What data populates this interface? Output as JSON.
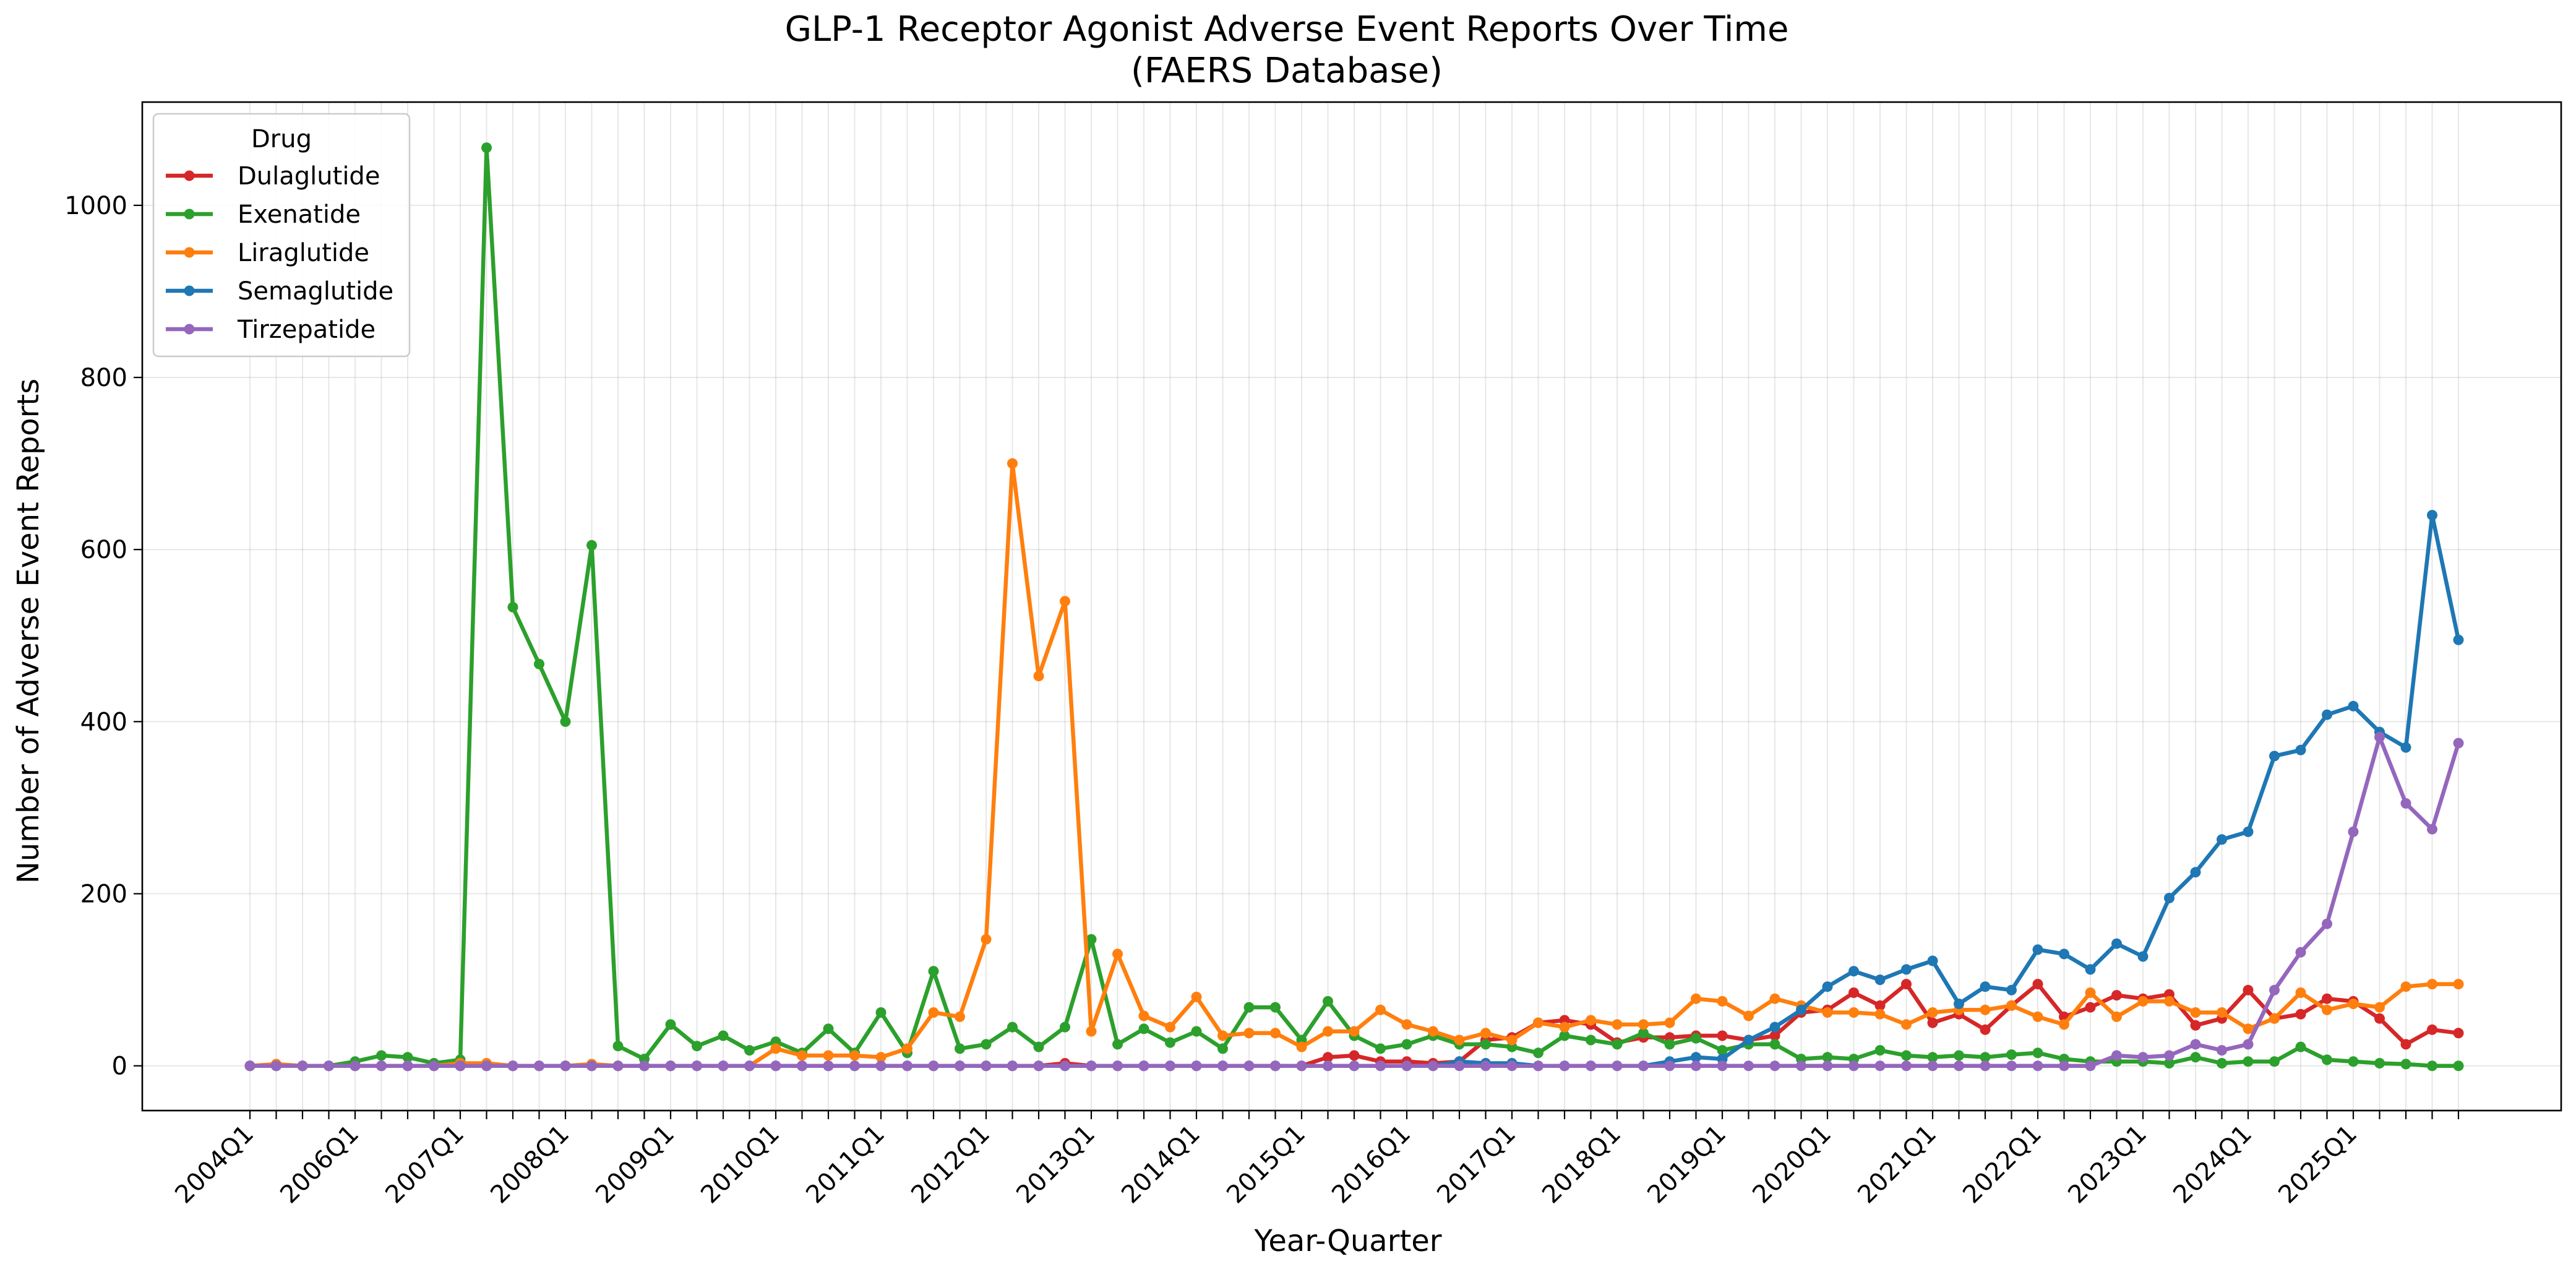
{
  "chart_data": {
    "type": "line",
    "title_line1": "GLP-1 Receptor Agonist Adverse Event Reports Over Time",
    "title_line2": "(FAERS Database)",
    "xlabel": "Year-Quarter",
    "ylabel": "Number of Adverse Event Reports",
    "ylim": [
      -52,
      1120
    ],
    "yticks": [
      0,
      200,
      400,
      600,
      800,
      1000
    ],
    "x_tick_labels": [
      {
        "i": 0,
        "label": "2004Q1"
      },
      {
        "i": 4,
        "label": "2006Q1"
      },
      {
        "i": 8,
        "label": "2007Q1"
      },
      {
        "i": 12,
        "label": "2008Q1"
      },
      {
        "i": 16,
        "label": "2009Q1"
      },
      {
        "i": 20,
        "label": "2010Q1"
      },
      {
        "i": 24,
        "label": "2011Q1"
      },
      {
        "i": 28,
        "label": "2012Q1"
      },
      {
        "i": 32,
        "label": "2013Q1"
      },
      {
        "i": 36,
        "label": "2014Q1"
      },
      {
        "i": 40,
        "label": "2015Q1"
      },
      {
        "i": 44,
        "label": "2016Q1"
      },
      {
        "i": 48,
        "label": "2017Q1"
      },
      {
        "i": 52,
        "label": "2018Q1"
      },
      {
        "i": 56,
        "label": "2019Q1"
      },
      {
        "i": 60,
        "label": "2020Q1"
      },
      {
        "i": 64,
        "label": "2021Q1"
      },
      {
        "i": 68,
        "label": "2022Q1"
      },
      {
        "i": 72,
        "label": "2023Q1"
      },
      {
        "i": 76,
        "label": "2024Q1"
      },
      {
        "i": 80,
        "label": "2025Q1"
      }
    ],
    "n_points": 85,
    "grid": true,
    "legend_title": "Drug",
    "legend_position": "top-left",
    "series": [
      {
        "name": "Dulaglutide",
        "color": "#d62728",
        "values": [
          0,
          0,
          0,
          0,
          0,
          0,
          0,
          0,
          0,
          0,
          0,
          0,
          0,
          0,
          0,
          0,
          0,
          0,
          0,
          0,
          0,
          0,
          0,
          0,
          0,
          0,
          0,
          0,
          0,
          0,
          0,
          3,
          0,
          0,
          0,
          0,
          0,
          0,
          0,
          0,
          0,
          10,
          12,
          5,
          5,
          3,
          5,
          30,
          33,
          50,
          53,
          48,
          27,
          33,
          33,
          35,
          35,
          30,
          35,
          62,
          65,
          85,
          70,
          95,
          50,
          60,
          42,
          70,
          95,
          57,
          68,
          82,
          78,
          83,
          47,
          55,
          88,
          55,
          60,
          78,
          75,
          55,
          25,
          42,
          38
        ]
      },
      {
        "name": "Exenatide",
        "color": "#2ca02c",
        "values": [
          0,
          0,
          0,
          0,
          5,
          12,
          10,
          3,
          7,
          1067,
          533,
          467,
          400,
          605,
          23,
          8,
          48,
          23,
          35,
          18,
          28,
          15,
          43,
          15,
          62,
          15,
          110,
          20,
          25,
          45,
          22,
          45,
          147,
          25,
          43,
          27,
          40,
          20,
          68,
          68,
          30,
          75,
          35,
          20,
          25,
          35,
          25,
          25,
          22,
          15,
          35,
          30,
          25,
          38,
          25,
          32,
          18,
          25,
          25,
          8,
          10,
          8,
          18,
          12,
          10,
          12,
          10,
          13,
          15,
          8,
          5,
          5,
          5,
          3,
          10,
          3,
          5,
          5,
          22,
          7,
          5,
          3,
          2,
          0,
          0
        ]
      },
      {
        "name": "Liraglutide",
        "color": "#ff7f0e",
        "values": [
          0,
          2,
          0,
          0,
          0,
          0,
          0,
          0,
          3,
          3,
          0,
          0,
          0,
          2,
          0,
          0,
          0,
          0,
          0,
          0,
          20,
          12,
          12,
          12,
          10,
          20,
          62,
          57,
          147,
          700,
          453,
          540,
          40,
          130,
          58,
          45,
          80,
          35,
          38,
          38,
          22,
          40,
          40,
          65,
          48,
          40,
          30,
          38,
          30,
          50,
          45,
          53,
          48,
          48,
          50,
          78,
          75,
          58,
          78,
          70,
          62,
          62,
          60,
          48,
          62,
          65,
          65,
          70,
          57,
          48,
          85,
          57,
          75,
          75,
          62,
          62,
          43,
          55,
          85,
          65,
          72,
          68,
          92,
          95,
          95
        ]
      },
      {
        "name": "Semaglutide",
        "color": "#1f77b4",
        "values": [
          0,
          0,
          0,
          0,
          0,
          0,
          0,
          0,
          0,
          0,
          0,
          0,
          0,
          0,
          0,
          0,
          0,
          0,
          0,
          0,
          0,
          0,
          0,
          0,
          0,
          0,
          0,
          0,
          0,
          0,
          0,
          0,
          0,
          0,
          0,
          0,
          0,
          0,
          0,
          0,
          0,
          0,
          0,
          0,
          0,
          0,
          5,
          3,
          3,
          0,
          0,
          0,
          0,
          0,
          5,
          10,
          8,
          30,
          45,
          65,
          92,
          110,
          100,
          112,
          122,
          72,
          92,
          88,
          135,
          130,
          112,
          142,
          127,
          195,
          225,
          263,
          272,
          360,
          367,
          408,
          418,
          388,
          370,
          640,
          495
        ]
      },
      {
        "name": "Tirzepatide",
        "color": "#9467bd",
        "values": [
          0,
          0,
          0,
          0,
          0,
          0,
          0,
          0,
          0,
          0,
          0,
          0,
          0,
          0,
          0,
          0,
          0,
          0,
          0,
          0,
          0,
          0,
          0,
          0,
          0,
          0,
          0,
          0,
          0,
          0,
          0,
          0,
          0,
          0,
          0,
          0,
          0,
          0,
          0,
          0,
          0,
          0,
          0,
          0,
          0,
          0,
          0,
          0,
          0,
          0,
          0,
          0,
          0,
          0,
          0,
          0,
          0,
          0,
          0,
          0,
          0,
          0,
          0,
          0,
          0,
          0,
          0,
          0,
          0,
          0,
          0,
          12,
          10,
          12,
          25,
          18,
          25,
          88,
          132,
          165,
          272,
          382,
          305,
          275,
          375
        ]
      }
    ]
  }
}
